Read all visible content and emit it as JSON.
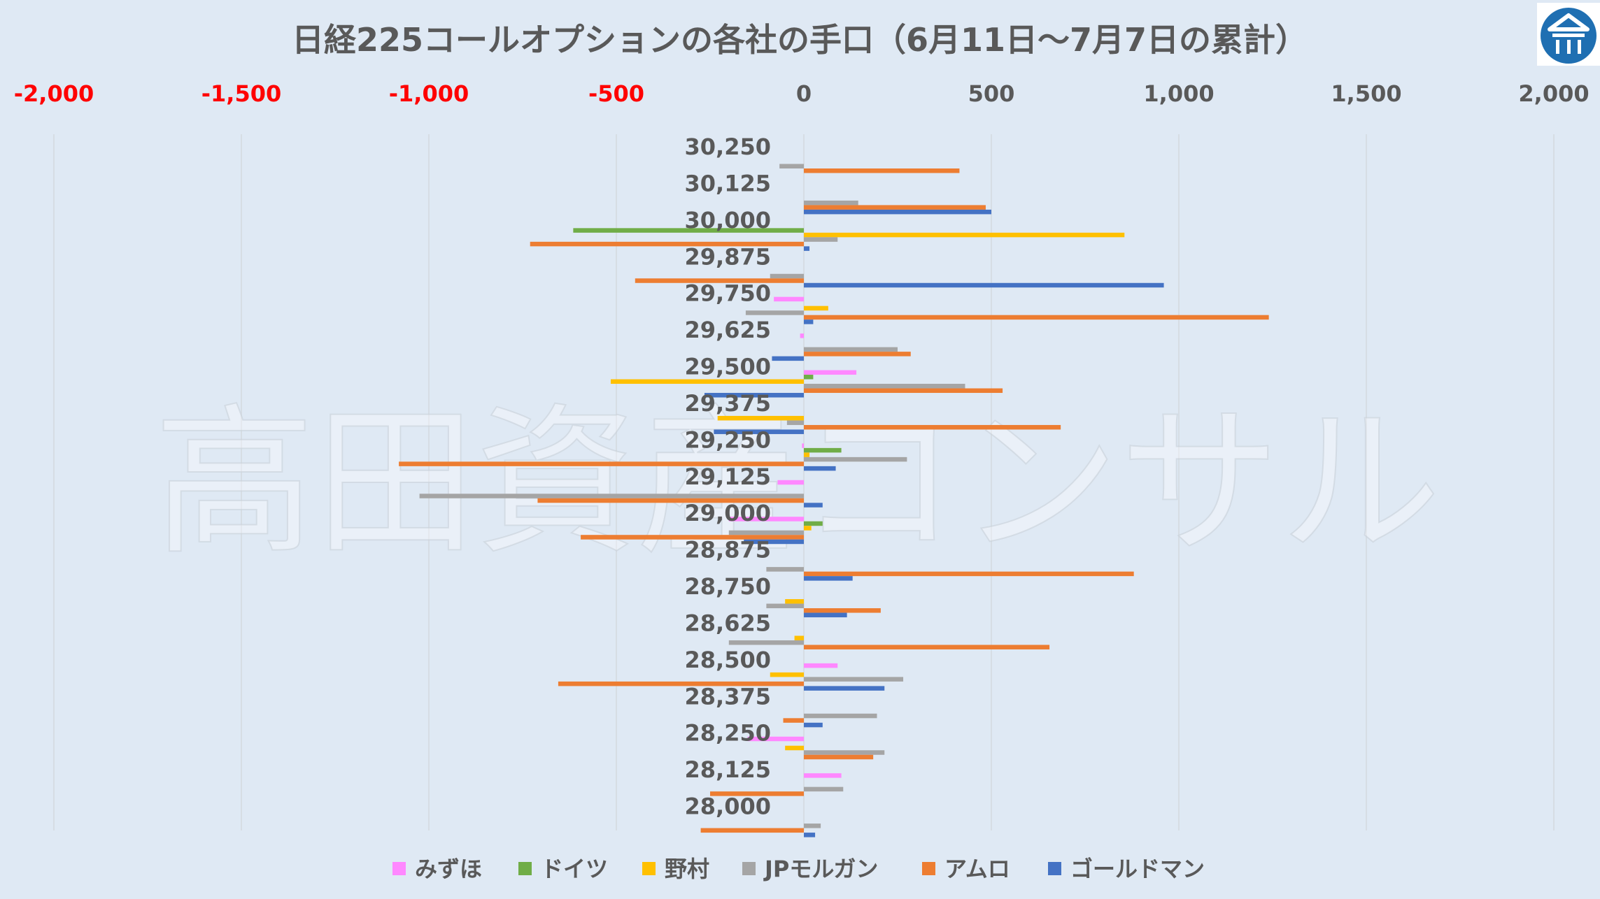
{
  "chart_data": {
    "type": "bar",
    "orientation": "horizontal",
    "title": "日経225コールオプションの各社の手口（6月11日〜7月7日の累計）",
    "watermark": "高田資産コンサル",
    "logo": "house-logo",
    "xlim": [
      -2000,
      2000
    ],
    "xticks": [
      -2000,
      -1500,
      -1000,
      -500,
      0,
      500,
      1000,
      1500,
      2000
    ],
    "xtick_labels": [
      "-2,000",
      "-1,500",
      "-1,000",
      "-500",
      "0",
      "500",
      "1,000",
      "1,500",
      "2,000"
    ],
    "negative_tick_color": "#ff0000",
    "positive_tick_color": "#595959",
    "grid": true,
    "legend_position": "bottom",
    "categories": [
      "30,250",
      "30,125",
      "30,000",
      "29,875",
      "29,750",
      "29,625",
      "29,500",
      "29,375",
      "29,250",
      "29,125",
      "29,000",
      "28,875",
      "28,750",
      "28,625",
      "28,500",
      "28,375",
      "28,250",
      "28,125",
      "28,000"
    ],
    "series": [
      {
        "name": "みずほ",
        "color": "#ff88ff",
        "values": [
          0,
          0,
          0,
          0,
          -80,
          -10,
          140,
          0,
          -5,
          -70,
          -200,
          0,
          0,
          0,
          90,
          0,
          -150,
          100,
          0
        ]
      },
      {
        "name": "ドイツ",
        "color": "#70ad47",
        "values": [
          0,
          0,
          -615,
          0,
          0,
          0,
          25,
          0,
          100,
          0,
          50,
          0,
          0,
          0,
          0,
          0,
          0,
          0,
          0
        ]
      },
      {
        "name": "野村",
        "color": "#ffc000",
        "values": [
          0,
          0,
          855,
          0,
          65,
          0,
          -515,
          -230,
          15,
          0,
          20,
          0,
          -50,
          -25,
          -90,
          0,
          -50,
          0,
          0
        ]
      },
      {
        "name": "JPモルガン",
        "color": "#a5a5a5",
        "values": [
          -65,
          145,
          90,
          -90,
          -155,
          250,
          430,
          -45,
          275,
          -1025,
          -200,
          -100,
          -100,
          -200,
          265,
          195,
          215,
          105,
          45
        ]
      },
      {
        "name": "アムロ",
        "color": "#ed7d31",
        "values": [
          415,
          485,
          -730,
          -450,
          1240,
          285,
          530,
          685,
          -1080,
          -710,
          -595,
          880,
          205,
          655,
          -655,
          -55,
          185,
          -250,
          -275
        ]
      },
      {
        "name": "ゴールドマン",
        "color": "#4472c4",
        "values": [
          0,
          500,
          15,
          960,
          25,
          -85,
          -265,
          -240,
          85,
          50,
          -160,
          130,
          115,
          0,
          215,
          50,
          0,
          0,
          30
        ]
      }
    ]
  }
}
